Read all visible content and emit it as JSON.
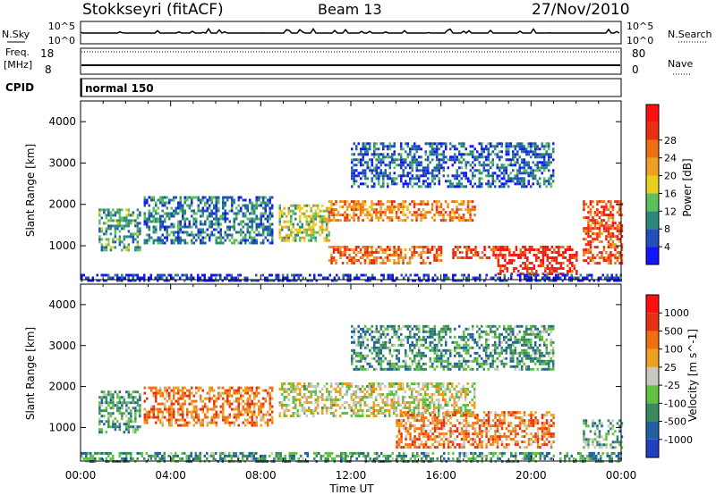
{
  "header": {
    "title": "Stokkseyri (fitACF)",
    "beam": "Beam 13",
    "date": "27/Nov/2010"
  },
  "top_panels": {
    "nsky_label": "N.Sky",
    "nsearch_label": "N.Search",
    "nsky_ticks": [
      "10^5",
      "10^0"
    ],
    "nsearch_ticks": [
      "10^5",
      "10^0"
    ],
    "freq_label": "Freq.",
    "freq_unit": "[MHz]",
    "freq_ticks": [
      "18",
      "8"
    ],
    "nave_label": "Nave",
    "nave_ticks": [
      "80",
      "0"
    ],
    "cpid_label": "CPID",
    "cpid_value": "normal 150"
  },
  "chart_data": [
    {
      "type": "heatmap",
      "name": "power",
      "ylabel": "Slant Range [km]",
      "y_ticks": [
        1000,
        2000,
        3000,
        4000
      ],
      "y_range_km": [
        180,
        4500
      ],
      "x_range_hours": [
        0,
        24
      ],
      "colorbar": {
        "label": "Power [dB]",
        "tick_labels": [
          "4",
          "8",
          "12",
          "16",
          "20",
          "24",
          "28"
        ],
        "colors": [
          "#1414ff",
          "#2050b8",
          "#2a8a7a",
          "#5cc05c",
          "#e8d020",
          "#f0a020",
          "#f07010",
          "#e83010",
          "#ff1010"
        ]
      },
      "echo_regions": [
        {
          "t0": 0.8,
          "t1": 2.6,
          "r0": 900,
          "r1": 1900,
          "level": 0.3
        },
        {
          "t0": 2.8,
          "t1": 8.5,
          "r0": 1050,
          "r1": 2200,
          "level": 0.25
        },
        {
          "t0": 8.8,
          "t1": 11.0,
          "r0": 1150,
          "r1": 2000,
          "level": 0.45
        },
        {
          "t0": 11.0,
          "t1": 17.5,
          "r0": 1600,
          "r1": 2100,
          "level": 0.7
        },
        {
          "t0": 11.0,
          "t1": 16.0,
          "r0": 600,
          "r1": 1000,
          "level": 0.75
        },
        {
          "t0": 16.5,
          "t1": 18.5,
          "r0": 700,
          "r1": 1000,
          "level": 0.85
        },
        {
          "t0": 18.5,
          "t1": 22.0,
          "r0": 300,
          "r1": 1000,
          "level": 0.9
        },
        {
          "t0": 22.3,
          "t1": 24.0,
          "r0": 600,
          "r1": 2100,
          "level": 0.8
        },
        {
          "t0": 12.0,
          "t1": 21.0,
          "r0": 2400,
          "r1": 3500,
          "level": 0.2
        },
        {
          "t0": 0.0,
          "t1": 24.0,
          "r0": 180,
          "r1": 320,
          "level": 0.1
        }
      ]
    },
    {
      "type": "heatmap",
      "name": "velocity",
      "ylabel": "Slant Range [km]",
      "xlabel": "Time UT",
      "x_tick_labels": [
        "00:00",
        "04:00",
        "08:00",
        "12:00",
        "16:00",
        "20:00",
        "00:00"
      ],
      "y_ticks": [
        1000,
        2000,
        3000,
        4000
      ],
      "y_range_km": [
        180,
        4500
      ],
      "x_range_hours": [
        0,
        24
      ],
      "colorbar": {
        "label": "Velocity [m s^-1]",
        "tick_labels": [
          "1000",
          "500",
          "100",
          "25",
          "-25",
          "-100",
          "-500",
          "-1000"
        ],
        "colors": [
          "#2040c0",
          "#2060a0",
          "#3a8a60",
          "#60c040",
          "#c8c8c0",
          "#f0a020",
          "#f07010",
          "#e83010",
          "#ff1010"
        ]
      },
      "echo_regions": [
        {
          "t0": 0.8,
          "t1": 2.6,
          "r0": 900,
          "r1": 1900,
          "level": 0.3
        },
        {
          "t0": 2.8,
          "t1": 8.5,
          "r0": 1050,
          "r1": 2000,
          "level": 0.7
        },
        {
          "t0": 8.8,
          "t1": 17.5,
          "r0": 1300,
          "r1": 2100,
          "level": 0.5
        },
        {
          "t0": 14.0,
          "t1": 21.0,
          "r0": 500,
          "r1": 1400,
          "level": 0.7
        },
        {
          "t0": 22.3,
          "t1": 24.0,
          "r0": 500,
          "r1": 1200,
          "level": 0.35
        },
        {
          "t0": 0.0,
          "t1": 24.0,
          "r0": 180,
          "r1": 400,
          "level": 0.3
        },
        {
          "t0": 12.0,
          "t1": 21.0,
          "r0": 2400,
          "r1": 3500,
          "level": 0.3
        }
      ]
    }
  ]
}
